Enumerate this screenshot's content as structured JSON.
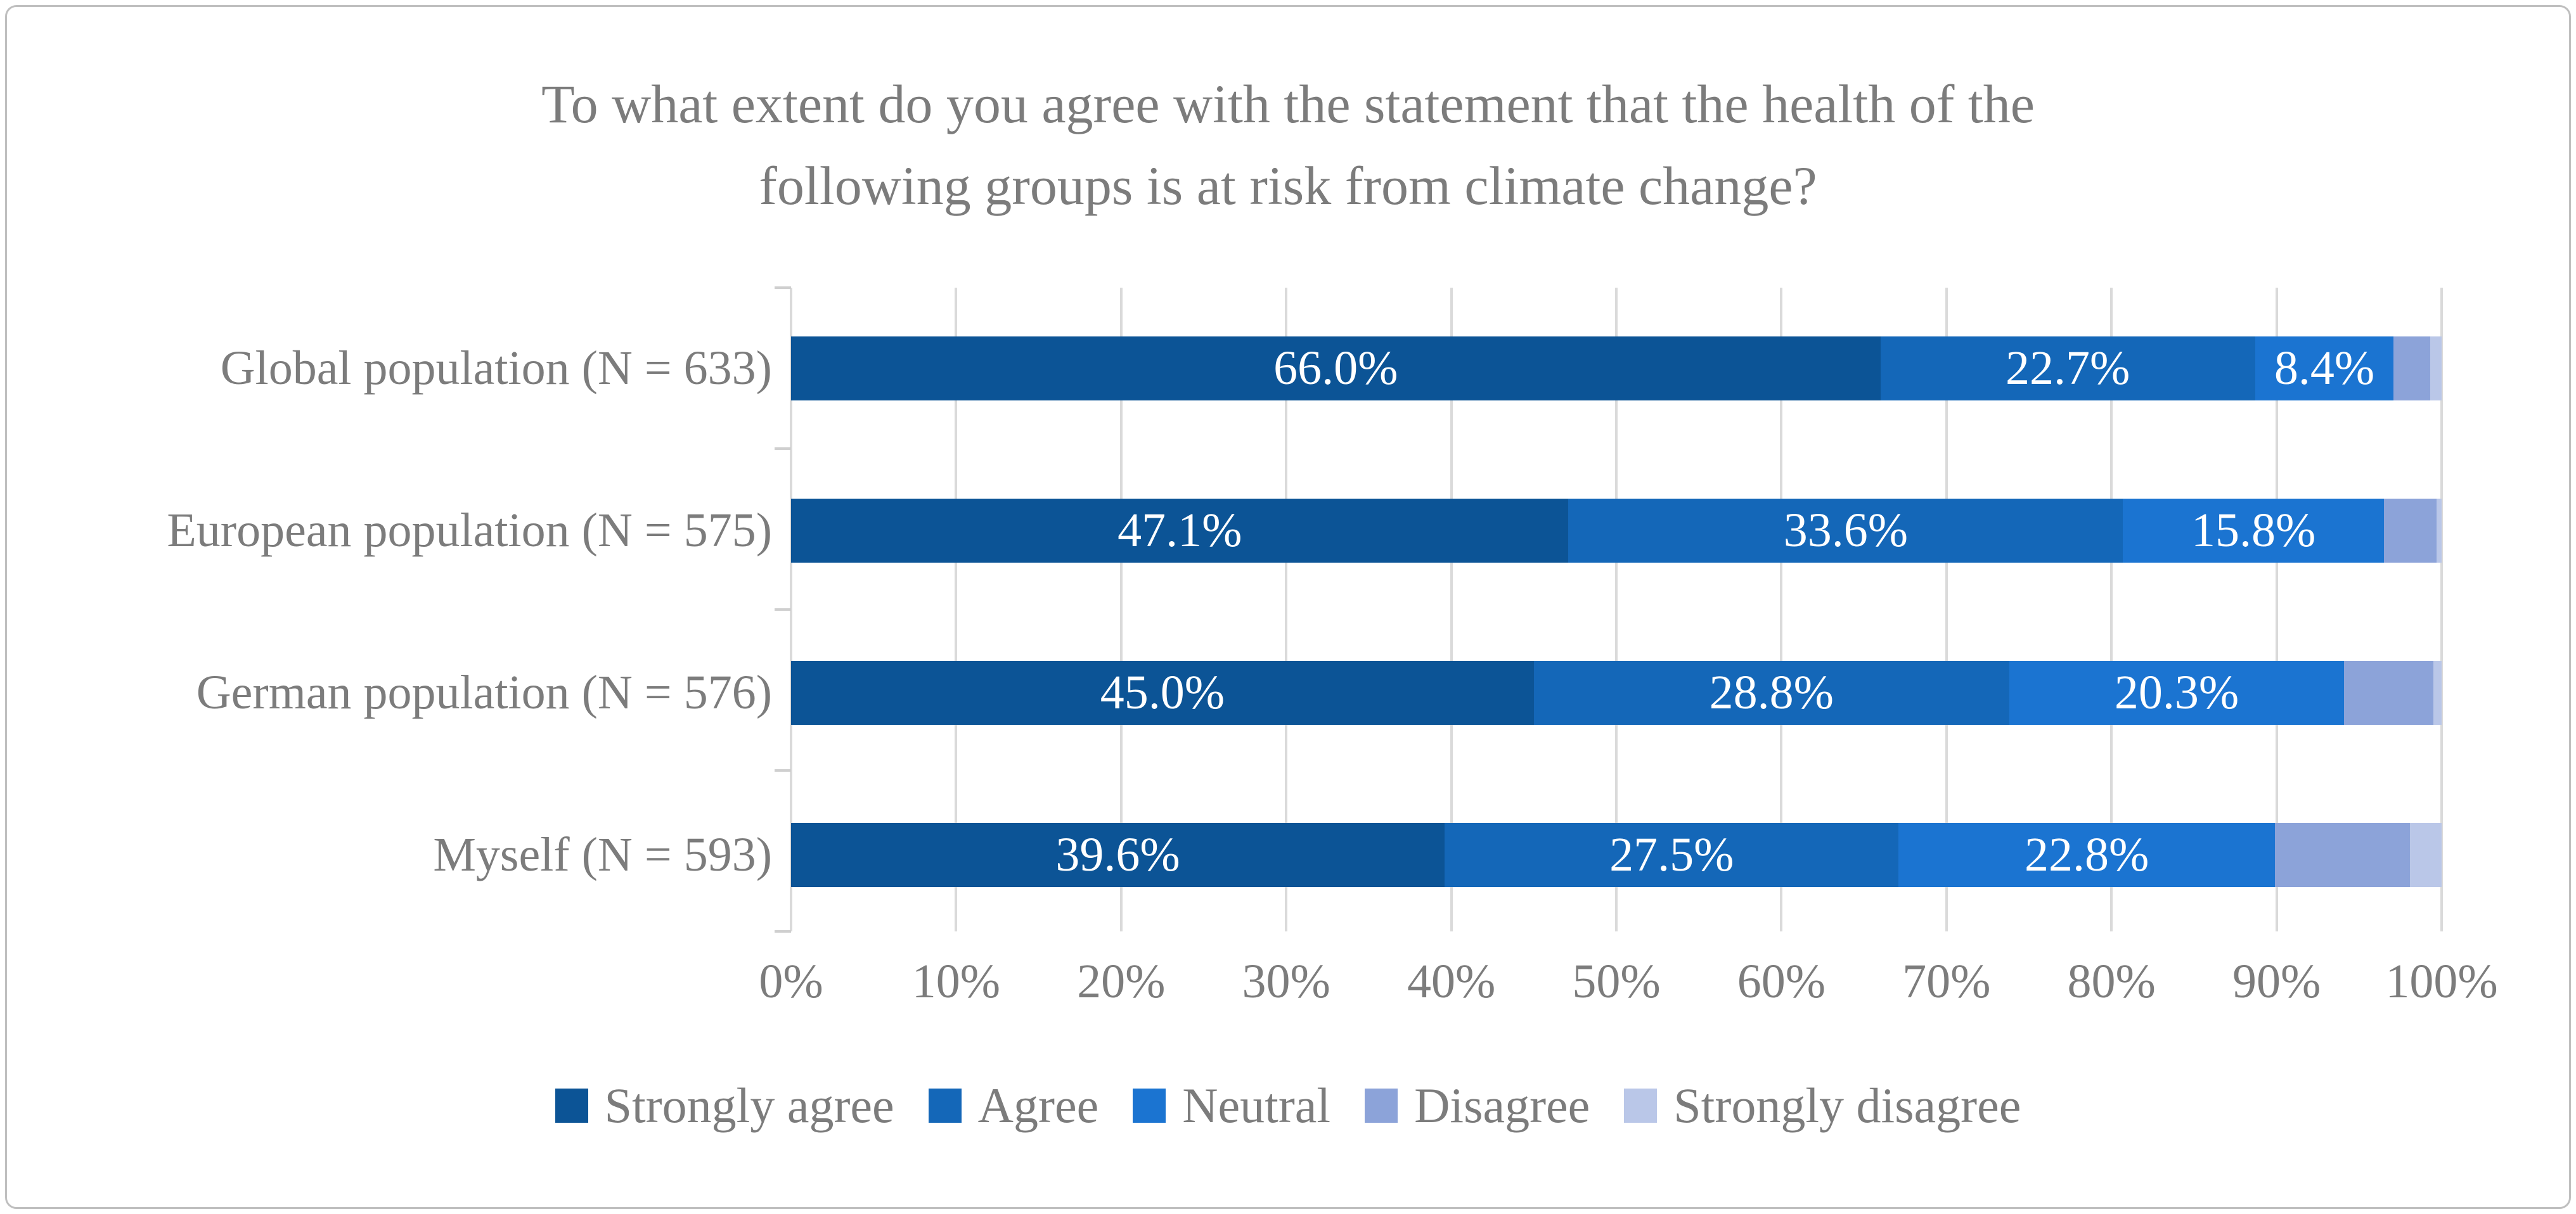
{
  "title": {
    "line1": "To what extent do you agree with the statement that the health of the",
    "line2": "following groups is at risk from climate change?",
    "full": "To what extent do you agree with the statement that the health of the following groups is at risk from climate change?"
  },
  "chart_data": {
    "type": "bar",
    "orientation": "horizontal",
    "stacked": true,
    "stacked_total": 100,
    "title": "To what extent do you agree with the statement that the health of the following groups is at risk from climate change?",
    "categories": [
      "Global population (N = 633)",
      "European population (N = 575)",
      "German population (N = 576)",
      "Myself (N = 593)"
    ],
    "series": [
      {
        "name": "Strongly agree",
        "color": "#0C5496",
        "values": [
          66.0,
          47.1,
          45.0,
          39.6
        ],
        "data_labels": [
          "66.0%",
          "47.1%",
          "45.0%",
          "39.6%"
        ],
        "labels_shown": true
      },
      {
        "name": "Agree",
        "color": "#1467B8",
        "values": [
          22.7,
          33.6,
          28.8,
          27.5
        ],
        "data_labels": [
          "22.7%",
          "33.6%",
          "28.8%",
          "27.5%"
        ],
        "labels_shown": true
      },
      {
        "name": "Neutral",
        "color": "#1B74D1",
        "values": [
          8.4,
          15.8,
          20.3,
          22.8
        ],
        "data_labels": [
          "8.4%",
          "15.8%",
          "20.3%",
          "22.8%"
        ],
        "labels_shown": true
      },
      {
        "name": "Disagree",
        "color": "#8CA3D9",
        "values": [
          2.2,
          3.2,
          5.4,
          8.2
        ],
        "data_labels": [
          null,
          null,
          null,
          null
        ],
        "labels_shown": false,
        "estimated": true
      },
      {
        "name": "Strongly disagree",
        "color": "#BAC7E8",
        "values": [
          0.7,
          0.3,
          0.5,
          1.9
        ],
        "data_labels": [
          null,
          null,
          null,
          null
        ],
        "labels_shown": false,
        "estimated": true
      }
    ],
    "x_axis": {
      "min": 0,
      "max": 100,
      "tick_step": 10,
      "ticks": [
        "0%",
        "10%",
        "20%",
        "30%",
        "40%",
        "50%",
        "60%",
        "70%",
        "80%",
        "90%",
        "100%"
      ]
    },
    "legend": {
      "position": "bottom",
      "entries": [
        "Strongly agree",
        "Agree",
        "Neutral",
        "Disagree",
        "Strongly disagree"
      ]
    },
    "grid": "vertical",
    "xlabel": "",
    "ylabel": ""
  },
  "style": {
    "text_color": "#7C7C7C",
    "gridline_color": "#DADADA",
    "frame_border_color": "#BFBFBF",
    "bar_label_color": "#FFFFFF"
  }
}
